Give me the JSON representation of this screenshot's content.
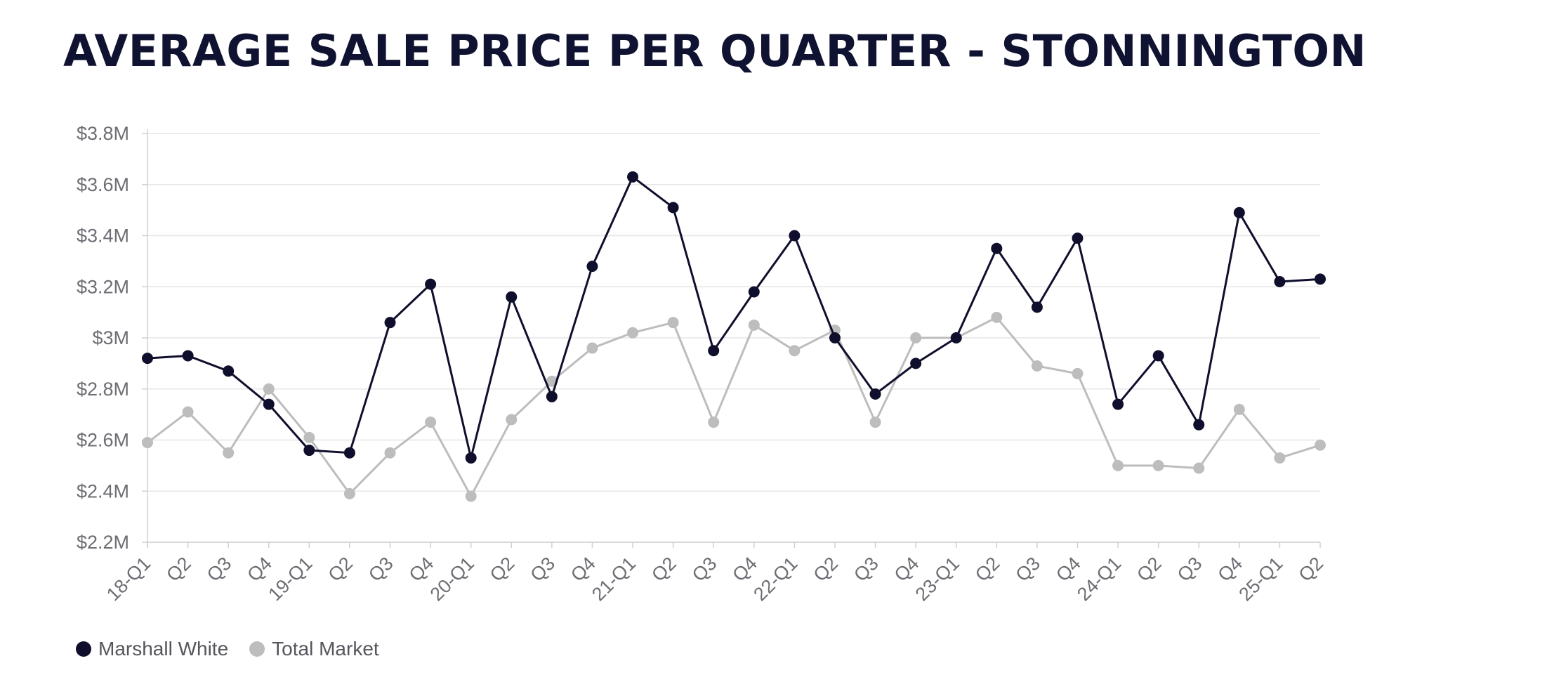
{
  "title": "AVERAGE SALE PRICE PER QUARTER - STONNINGTON",
  "chart_data": {
    "type": "line",
    "title": "AVERAGE SALE PRICE PER QUARTER - STONNINGTON",
    "xlabel": "",
    "ylabel": "",
    "ylim": [
      2.2,
      3.8
    ],
    "yticks": [
      {
        "value": 3.8,
        "label": "$3.8M"
      },
      {
        "value": 3.6,
        "label": "$3.6M"
      },
      {
        "value": 3.4,
        "label": "$3.4M"
      },
      {
        "value": 3.2,
        "label": "$3.2M"
      },
      {
        "value": 3.0,
        "label": "$3M"
      },
      {
        "value": 2.8,
        "label": "$2.8M"
      },
      {
        "value": 2.6,
        "label": "$2.6M"
      },
      {
        "value": 2.4,
        "label": "$2.4M"
      },
      {
        "value": 2.2,
        "label": "$2.2M"
      }
    ],
    "categories": [
      "18-Q1",
      "Q2",
      "Q3",
      "Q4",
      "19-Q1",
      "Q2",
      "Q3",
      "Q4",
      "20-Q1",
      "Q2",
      "Q3",
      "Q4",
      "21-Q1",
      "Q2",
      "Q3",
      "Q4",
      "22-Q1",
      "Q2",
      "Q3",
      "Q4",
      "23-Q1",
      "Q2",
      "Q3",
      "Q4",
      "24-Q1",
      "Q2",
      "Q3",
      "Q4",
      "25-Q1",
      "Q2"
    ],
    "grid": true,
    "legend_position": "bottom-left",
    "series": [
      {
        "name": "Marshall White",
        "color": "#0f0f2d",
        "values": [
          2.92,
          2.93,
          2.87,
          2.74,
          2.56,
          2.55,
          3.06,
          3.21,
          2.53,
          3.16,
          2.77,
          3.28,
          3.63,
          3.51,
          2.95,
          3.18,
          3.4,
          3.0,
          2.78,
          2.9,
          3.0,
          3.35,
          3.12,
          3.39,
          2.74,
          2.93,
          2.66,
          3.49,
          3.22,
          3.23
        ]
      },
      {
        "name": "Total Market",
        "color": "#bdbdbd",
        "values": [
          2.59,
          2.71,
          2.55,
          2.8,
          2.61,
          2.39,
          2.55,
          2.67,
          2.38,
          2.68,
          2.83,
          2.96,
          3.02,
          3.06,
          2.67,
          3.05,
          2.95,
          3.03,
          2.67,
          3.0,
          3.0,
          3.08,
          2.89,
          2.86,
          2.5,
          2.5,
          2.49,
          2.72,
          2.53,
          2.58
        ]
      }
    ]
  }
}
